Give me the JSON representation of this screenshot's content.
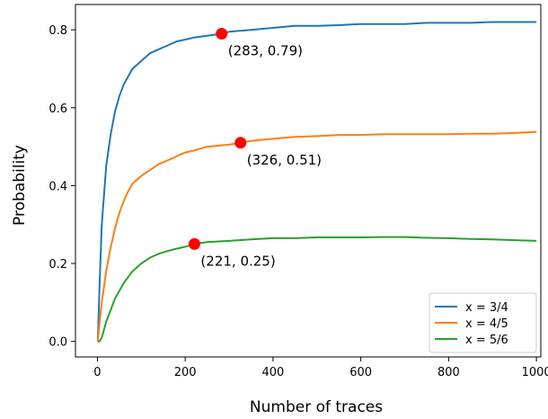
{
  "chart_data": {
    "type": "line",
    "xlabel": "Number of traces",
    "ylabel": "Probability",
    "xlim": [
      -50,
      1010
    ],
    "ylim": [
      -0.04,
      0.865
    ],
    "xticks": [
      0,
      200,
      400,
      600,
      800,
      1000
    ],
    "xtick_labels": [
      "0",
      "200",
      "400",
      "600",
      "800",
      "1000"
    ],
    "yticks": [
      0.0,
      0.2,
      0.4,
      0.6,
      0.8
    ],
    "ytick_labels": [
      "0.0",
      "0.2",
      "0.4",
      "0.6",
      "0.8"
    ],
    "grid": false,
    "legend_position": "bottom-right",
    "series": [
      {
        "name": "x = 3/4",
        "color": "#1f77b4",
        "x": [
          1,
          5,
          10,
          20,
          30,
          40,
          50,
          60,
          70,
          80,
          100,
          120,
          140,
          160,
          180,
          200,
          220,
          250,
          283,
          300,
          350,
          400,
          450,
          500,
          550,
          600,
          650,
          700,
          750,
          800,
          850,
          900,
          950,
          1000
        ],
        "y": [
          0.0,
          0.15,
          0.3,
          0.45,
          0.53,
          0.59,
          0.63,
          0.66,
          0.68,
          0.7,
          0.72,
          0.74,
          0.75,
          0.76,
          0.77,
          0.775,
          0.78,
          0.785,
          0.79,
          0.795,
          0.8,
          0.805,
          0.81,
          0.81,
          0.812,
          0.815,
          0.815,
          0.815,
          0.818,
          0.818,
          0.818,
          0.82,
          0.82,
          0.82
        ]
      },
      {
        "name": "x = 4/5",
        "color": "#ff7f0e",
        "x": [
          1,
          5,
          10,
          20,
          30,
          40,
          50,
          60,
          70,
          80,
          100,
          120,
          140,
          160,
          180,
          200,
          220,
          250,
          300,
          326,
          350,
          400,
          450,
          500,
          550,
          600,
          650,
          700,
          750,
          800,
          850,
          900,
          950,
          1000
        ],
        "y": [
          0.0,
          0.05,
          0.1,
          0.18,
          0.24,
          0.29,
          0.33,
          0.36,
          0.385,
          0.405,
          0.425,
          0.44,
          0.455,
          0.465,
          0.475,
          0.485,
          0.49,
          0.5,
          0.505,
          0.51,
          0.515,
          0.52,
          0.525,
          0.527,
          0.53,
          0.53,
          0.532,
          0.532,
          0.532,
          0.532,
          0.533,
          0.533,
          0.535,
          0.538
        ]
      },
      {
        "name": "x = 5/6",
        "color": "#2ca02c",
        "x": [
          1,
          5,
          10,
          20,
          30,
          40,
          50,
          60,
          70,
          80,
          100,
          120,
          140,
          160,
          180,
          200,
          221,
          250,
          300,
          350,
          400,
          450,
          500,
          550,
          600,
          650,
          700,
          750,
          800,
          850,
          900,
          950,
          1000
        ],
        "y": [
          0.0,
          0.0,
          0.01,
          0.05,
          0.08,
          0.11,
          0.13,
          0.15,
          0.165,
          0.18,
          0.2,
          0.215,
          0.225,
          0.232,
          0.238,
          0.243,
          0.25,
          0.255,
          0.258,
          0.262,
          0.265,
          0.265,
          0.267,
          0.267,
          0.267,
          0.268,
          0.268,
          0.266,
          0.265,
          0.263,
          0.262,
          0.26,
          0.258
        ]
      }
    ],
    "annotations": [
      {
        "x": 283,
        "y": 0.79,
        "label": "(283, 0.79)",
        "color": "#ff0000"
      },
      {
        "x": 326,
        "y": 0.51,
        "label": "(326, 0.51)",
        "color": "#ff0000"
      },
      {
        "x": 221,
        "y": 0.25,
        "label": "(221, 0.25)",
        "color": "#ff0000"
      }
    ]
  }
}
